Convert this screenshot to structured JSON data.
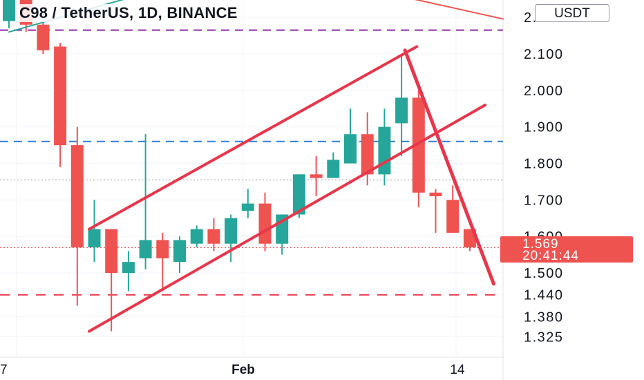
{
  "header": {
    "title": "C98 / TetherUS, 1D, BINANCE"
  },
  "toolbar": {
    "currency_label": "USDT"
  },
  "price_badge": {
    "price": "1.569",
    "countdown": "20:41:44"
  },
  "colors": {
    "up": "#26a69a",
    "down": "#ef5350",
    "trend": "#e8364a",
    "support_blue": "#2f7fd8",
    "resistance_purple": "#8e2aa6",
    "teal_line": "#26a69a"
  },
  "chart_data": {
    "type": "candlestick",
    "title": "C98 / TetherUS, 1D, BINANCE",
    "y_ticks": [
      "2.200",
      "2.100",
      "2.000",
      "1.900",
      "1.800",
      "1.700",
      "1.600",
      "1.500",
      "1.440",
      "1.380",
      "1.325"
    ],
    "x_ticks": [
      "7",
      "Feb",
      "14"
    ],
    "ylim": [
      1.31,
      2.24
    ],
    "grid": true,
    "last_price": 1.569,
    "levels": [
      {
        "kind": "dashed",
        "color": "#8e2aa6",
        "value": 2.165
      },
      {
        "kind": "dashed",
        "color": "#2f7fd8",
        "value": 1.86
      },
      {
        "kind": "dotted",
        "color": "#9598a1",
        "value": 1.755
      },
      {
        "kind": "dotted",
        "color": "#ef5350",
        "value": 1.569
      },
      {
        "kind": "dashed",
        "color": "#e8364a",
        "value": 1.44
      }
    ],
    "candles": [
      {
        "o": 2.19,
        "h": 2.26,
        "l": 2.17,
        "c": 2.26
      },
      {
        "o": 2.26,
        "h": 2.26,
        "l": 2.16,
        "c": 2.18
      },
      {
        "o": 2.18,
        "h": 2.19,
        "l": 2.1,
        "c": 2.11
      },
      {
        "o": 2.12,
        "h": 2.13,
        "l": 1.79,
        "c": 1.85
      },
      {
        "o": 1.85,
        "h": 1.9,
        "l": 1.41,
        "c": 1.57
      },
      {
        "o": 1.57,
        "h": 1.7,
        "l": 1.53,
        "c": 1.62
      },
      {
        "o": 1.62,
        "h": 1.62,
        "l": 1.34,
        "c": 1.5
      },
      {
        "o": 1.5,
        "h": 1.56,
        "l": 1.45,
        "c": 1.53
      },
      {
        "o": 1.54,
        "h": 1.88,
        "l": 1.51,
        "c": 1.59
      },
      {
        "o": 1.59,
        "h": 1.61,
        "l": 1.45,
        "c": 1.54
      },
      {
        "o": 1.53,
        "h": 1.6,
        "l": 1.5,
        "c": 1.59
      },
      {
        "o": 1.58,
        "h": 1.63,
        "l": 1.57,
        "c": 1.62
      },
      {
        "o": 1.62,
        "h": 1.65,
        "l": 1.56,
        "c": 1.58
      },
      {
        "o": 1.58,
        "h": 1.66,
        "l": 1.53,
        "c": 1.65
      },
      {
        "o": 1.67,
        "h": 1.73,
        "l": 1.65,
        "c": 1.69
      },
      {
        "o": 1.69,
        "h": 1.72,
        "l": 1.56,
        "c": 1.58
      },
      {
        "o": 1.58,
        "h": 1.66,
        "l": 1.55,
        "c": 1.66
      },
      {
        "o": 1.66,
        "h": 1.77,
        "l": 1.65,
        "c": 1.77
      },
      {
        "o": 1.77,
        "h": 1.82,
        "l": 1.71,
        "c": 1.76
      },
      {
        "o": 1.76,
        "h": 1.83,
        "l": 1.76,
        "c": 1.81
      },
      {
        "o": 1.8,
        "h": 1.95,
        "l": 1.8,
        "c": 1.88
      },
      {
        "o": 1.88,
        "h": 1.94,
        "l": 1.74,
        "c": 1.77
      },
      {
        "o": 1.77,
        "h": 1.95,
        "l": 1.74,
        "c": 1.9
      },
      {
        "o": 1.91,
        "h": 2.1,
        "l": 1.82,
        "c": 1.98
      },
      {
        "o": 1.98,
        "h": 2.0,
        "l": 1.68,
        "c": 1.72
      },
      {
        "o": 1.72,
        "h": 1.73,
        "l": 1.61,
        "c": 1.71
      },
      {
        "o": 1.7,
        "h": 1.74,
        "l": 1.61,
        "c": 1.61
      },
      {
        "o": 1.62,
        "h": 1.62,
        "l": 1.56,
        "c": 1.57
      }
    ],
    "trendlines": [
      {
        "name": "channel-upper",
        "color": "#e8364a",
        "from": [
          4.7,
          1.62
        ],
        "to": [
          23.9,
          2.12
        ]
      },
      {
        "name": "channel-lower",
        "color": "#e8364a",
        "from": [
          4.7,
          1.34
        ],
        "to": [
          27.9,
          1.96
        ]
      },
      {
        "name": "breakdown-line",
        "color": "#e8364a",
        "from": [
          23.2,
          2.11
        ],
        "to": [
          28.4,
          1.47
        ]
      },
      {
        "name": "upper-right-line",
        "color": "#ef5350",
        "from": [
          21.8,
          2.27
        ],
        "to": [
          29.5,
          2.19
        ]
      },
      {
        "name": "teal-trendline",
        "color": "#26a69a",
        "from": [
          0,
          2.16
        ],
        "to": [
          7.5,
          2.26
        ]
      }
    ]
  }
}
